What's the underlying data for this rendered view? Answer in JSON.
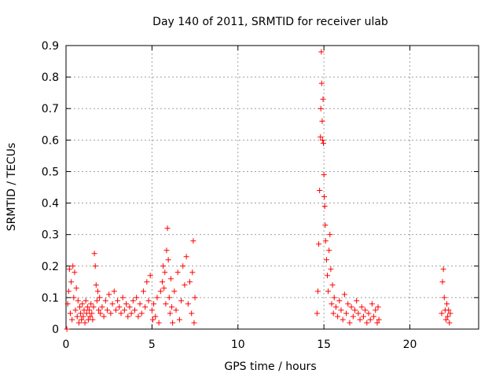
{
  "chart_data": {
    "type": "scatter",
    "title": "Day 140 of 2011, SRMTID for receiver ulab",
    "xlabel": "GPS time / hours",
    "ylabel": "SRMTID / TECUs",
    "xlim": [
      0,
      24
    ],
    "ylim": [
      0,
      0.9
    ],
    "xticks": [
      0,
      5,
      10,
      15,
      20
    ],
    "yticks": [
      0,
      0.1,
      0.2,
      0.3,
      0.4,
      0.5,
      0.6,
      0.7,
      0.8,
      0.9
    ],
    "grid": true,
    "marker": "+",
    "series": [
      {
        "name": "SRMTID",
        "color": "#ff0000",
        "points": [
          [
            0.05,
            0.0
          ],
          [
            0.1,
            0.08
          ],
          [
            0.15,
            0.12
          ],
          [
            0.2,
            0.19
          ],
          [
            0.25,
            0.05
          ],
          [
            0.3,
            0.15
          ],
          [
            0.35,
            0.03
          ],
          [
            0.4,
            0.2
          ],
          [
            0.45,
            0.1
          ],
          [
            0.5,
            0.18
          ],
          [
            0.55,
            0.06
          ],
          [
            0.6,
            0.13
          ],
          [
            0.65,
            0.04
          ],
          [
            0.7,
            0.09
          ],
          [
            0.75,
            0.02
          ],
          [
            0.8,
            0.07
          ],
          [
            0.85,
            0.05
          ],
          [
            0.9,
            0.03
          ],
          [
            0.95,
            0.08
          ],
          [
            1.0,
            0.04
          ],
          [
            1.05,
            0.06
          ],
          [
            1.1,
            0.02
          ],
          [
            1.15,
            0.09
          ],
          [
            1.2,
            0.05
          ],
          [
            1.25,
            0.07
          ],
          [
            1.3,
            0.03
          ],
          [
            1.35,
            0.06
          ],
          [
            1.4,
            0.04
          ],
          [
            1.45,
            0.08
          ],
          [
            1.5,
            0.05
          ],
          [
            1.55,
            0.03
          ],
          [
            1.6,
            0.07
          ],
          [
            1.65,
            0.24
          ],
          [
            1.7,
            0.2
          ],
          [
            1.75,
            0.14
          ],
          [
            1.8,
            0.09
          ],
          [
            1.85,
            0.12
          ],
          [
            1.9,
            0.06
          ],
          [
            1.95,
            0.1
          ],
          [
            2.0,
            0.05
          ],
          [
            2.1,
            0.07
          ],
          [
            2.2,
            0.04
          ],
          [
            2.3,
            0.09
          ],
          [
            2.4,
            0.06
          ],
          [
            2.5,
            0.11
          ],
          [
            2.6,
            0.05
          ],
          [
            2.7,
            0.08
          ],
          [
            2.8,
            0.12
          ],
          [
            2.9,
            0.06
          ],
          [
            3.0,
            0.09
          ],
          [
            3.1,
            0.07
          ],
          [
            3.2,
            0.05
          ],
          [
            3.3,
            0.1
          ],
          [
            3.4,
            0.06
          ],
          [
            3.5,
            0.08
          ],
          [
            3.6,
            0.04
          ],
          [
            3.7,
            0.07
          ],
          [
            3.8,
            0.05
          ],
          [
            3.9,
            0.09
          ],
          [
            4.0,
            0.06
          ],
          [
            4.1,
            0.1
          ],
          [
            4.2,
            0.04
          ],
          [
            4.3,
            0.08
          ],
          [
            4.4,
            0.05
          ],
          [
            4.5,
            0.12
          ],
          [
            4.6,
            0.07
          ],
          [
            4.7,
            0.15
          ],
          [
            4.8,
            0.09
          ],
          [
            4.9,
            0.17
          ],
          [
            5.0,
            0.06
          ],
          [
            5.05,
            0.03
          ],
          [
            5.1,
            0.08
          ],
          [
            5.2,
            0.04
          ],
          [
            5.3,
            0.1
          ],
          [
            5.4,
            0.02
          ],
          [
            5.5,
            0.12
          ],
          [
            5.6,
            0.15
          ],
          [
            5.65,
            0.2
          ],
          [
            5.7,
            0.13
          ],
          [
            5.75,
            0.18
          ],
          [
            5.8,
            0.08
          ],
          [
            5.85,
            0.25
          ],
          [
            5.9,
            0.32
          ],
          [
            5.95,
            0.22
          ],
          [
            6.0,
            0.1
          ],
          [
            6.05,
            0.05
          ],
          [
            6.1,
            0.16
          ],
          [
            6.15,
            0.07
          ],
          [
            6.2,
            0.02
          ],
          [
            6.3,
            0.12
          ],
          [
            6.4,
            0.06
          ],
          [
            6.5,
            0.18
          ],
          [
            6.6,
            0.03
          ],
          [
            6.7,
            0.09
          ],
          [
            6.8,
            0.2
          ],
          [
            6.9,
            0.14
          ],
          [
            7.0,
            0.23
          ],
          [
            7.1,
            0.08
          ],
          [
            7.2,
            0.15
          ],
          [
            7.3,
            0.05
          ],
          [
            7.35,
            0.18
          ],
          [
            7.4,
            0.28
          ],
          [
            7.45,
            0.02
          ],
          [
            7.5,
            0.1
          ],
          [
            14.6,
            0.05
          ],
          [
            14.65,
            0.12
          ],
          [
            14.7,
            0.27
          ],
          [
            14.75,
            0.44
          ],
          [
            14.8,
            0.61
          ],
          [
            14.82,
            0.7
          ],
          [
            14.85,
            0.88
          ],
          [
            14.87,
            0.78
          ],
          [
            14.9,
            0.66
          ],
          [
            14.92,
            0.6
          ],
          [
            14.95,
            0.73
          ],
          [
            14.97,
            0.59
          ],
          [
            15.0,
            0.49
          ],
          [
            15.02,
            0.42
          ],
          [
            15.05,
            0.39
          ],
          [
            15.08,
            0.33
          ],
          [
            15.1,
            0.28
          ],
          [
            15.15,
            0.22
          ],
          [
            15.2,
            0.17
          ],
          [
            15.25,
            0.12
          ],
          [
            15.3,
            0.25
          ],
          [
            15.35,
            0.3
          ],
          [
            15.4,
            0.19
          ],
          [
            15.45,
            0.08
          ],
          [
            15.5,
            0.14
          ],
          [
            15.55,
            0.05
          ],
          [
            15.6,
            0.1
          ],
          [
            15.7,
            0.07
          ],
          [
            15.8,
            0.04
          ],
          [
            15.9,
            0.09
          ],
          [
            16.0,
            0.06
          ],
          [
            16.1,
            0.03
          ],
          [
            16.2,
            0.11
          ],
          [
            16.3,
            0.05
          ],
          [
            16.4,
            0.08
          ],
          [
            16.5,
            0.02
          ],
          [
            16.6,
            0.07
          ],
          [
            16.7,
            0.04
          ],
          [
            16.8,
            0.06
          ],
          [
            16.9,
            0.09
          ],
          [
            17.0,
            0.05
          ],
          [
            17.1,
            0.03
          ],
          [
            17.2,
            0.07
          ],
          [
            17.3,
            0.04
          ],
          [
            17.4,
            0.06
          ],
          [
            17.5,
            0.02
          ],
          [
            17.6,
            0.05
          ],
          [
            17.7,
            0.03
          ],
          [
            17.8,
            0.08
          ],
          [
            17.9,
            0.04
          ],
          [
            18.0,
            0.06
          ],
          [
            18.1,
            0.02
          ],
          [
            18.15,
            0.07
          ],
          [
            18.2,
            0.03
          ],
          [
            21.85,
            0.05
          ],
          [
            21.9,
            0.15
          ],
          [
            21.95,
            0.19
          ],
          [
            22.0,
            0.1
          ],
          [
            22.05,
            0.06
          ],
          [
            22.1,
            0.03
          ],
          [
            22.15,
            0.08
          ],
          [
            22.2,
            0.04
          ],
          [
            22.25,
            0.06
          ],
          [
            22.3,
            0.02
          ],
          [
            22.35,
            0.05
          ]
        ]
      }
    ]
  }
}
